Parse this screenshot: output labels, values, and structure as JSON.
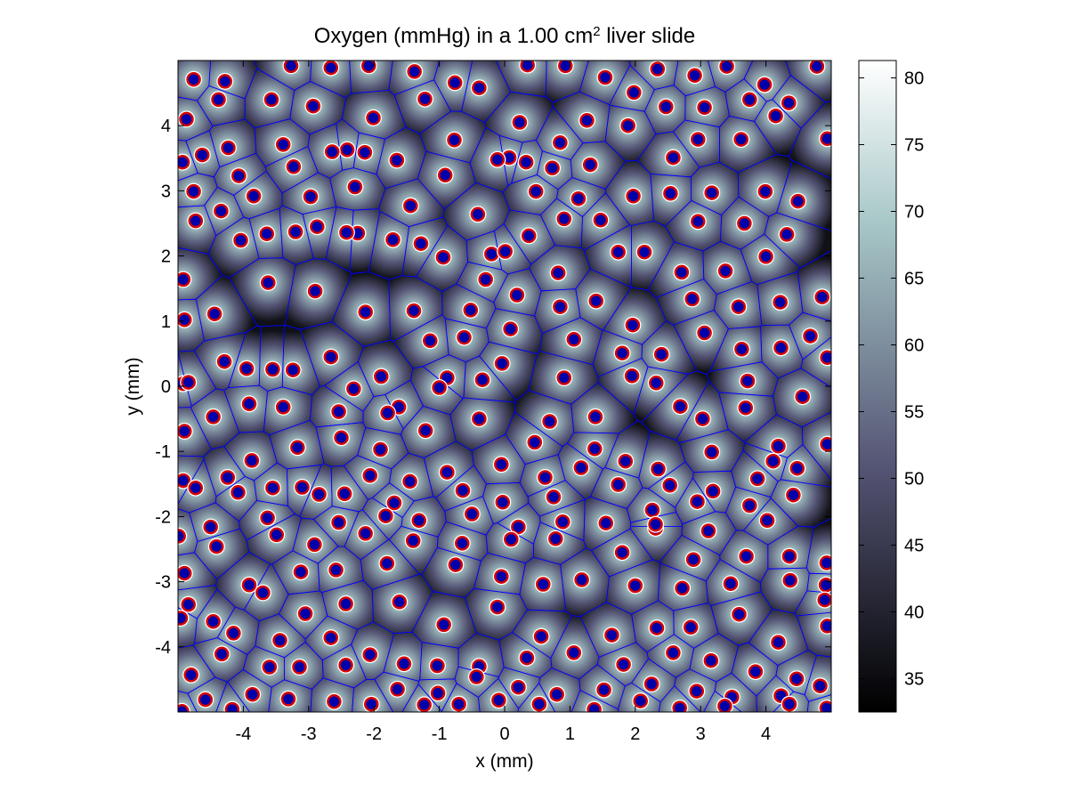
{
  "chart_data": {
    "type": "heatmap",
    "title": {
      "main": "Oxygen (mmHg) in a 1.00 cm",
      "superscript": "2",
      "suffix": " liver slide"
    },
    "xlabel": "x (mm)",
    "ylabel": "y (mm)",
    "xlim": [
      -5,
      5
    ],
    "ylim": [
      -5,
      5
    ],
    "xticks": [
      -4,
      -3,
      -2,
      -1,
      0,
      1,
      2,
      3,
      4
    ],
    "yticks": [
      -4,
      -3,
      -2,
      -1,
      0,
      1,
      2,
      3,
      4
    ],
    "grid": false,
    "colorbar": {
      "min": 32.5,
      "max": 81.3,
      "ticks": [
        35,
        40,
        45,
        50,
        55,
        60,
        65,
        70,
        75,
        80
      ],
      "colormap": "bone",
      "location": "right"
    },
    "colors": {
      "voronoi_edge": "#0000ff",
      "vessel_ring": "#ffffff",
      "vessel_outline": "#d40000",
      "vessel_core": "#0000aa",
      "field_low": "#000000",
      "field_high": "#ffffff"
    },
    "vessels_x": [
      -4.76,
      -4.28,
      -3.27,
      -2.66,
      -2.08,
      -1.38,
      -0.76,
      0.35,
      0.93,
      1.54,
      2.34,
      2.91,
      3.4,
      3.98,
      4.78,
      -4.87,
      -4.38,
      -3.57,
      -2.93,
      -2.01,
      -1.22,
      -0.39,
      0.23,
      1.26,
      1.98,
      2.47,
      3.06,
      3.75,
      4.35,
      -4.93,
      -4.23,
      -3.39,
      -2.41,
      -1.65,
      -0.77,
      0.07,
      0.85,
      1.89,
      2.96,
      3.62,
      4.15,
      -4.63,
      -4.07,
      -3.23,
      -2.64,
      -2.14,
      -0.91,
      -0.11,
      0.33,
      0.73,
      1.31,
      2.58,
      4.94,
      -4.76,
      -3.84,
      -2.97,
      -2.29,
      -1.44,
      -0.41,
      0.48,
      1.13,
      1.97,
      2.54,
      3.17,
      3.99,
      4.49,
      -4.73,
      -4.34,
      -3.64,
      -2.87,
      -2.25,
      -1.28,
      -0.2,
      0.37,
      0.91,
      1.47,
      2.14,
      2.96,
      3.67,
      4.32,
      -4.92,
      -4.04,
      -3.2,
      -2.42,
      -1.71,
      -0.94,
      -0.29,
      0.01,
      0.82,
      1.74,
      2.71,
      3.38,
      4.0,
      4.86,
      -4.9,
      -4.44,
      -3.62,
      -2.9,
      -2.13,
      -1.39,
      -0.52,
      0.19,
      0.85,
      1.4,
      1.96,
      2.87,
      3.58,
      4.22,
      4.68,
      -4.92,
      -4.29,
      -3.55,
      -2.66,
      -1.89,
      -1.14,
      -0.62,
      0.09,
      1.06,
      1.8,
      2.4,
      3.06,
      3.63,
      4.23,
      4.94,
      -4.84,
      -3.95,
      -3.24,
      -2.31,
      -1.62,
      -0.88,
      -0.04,
      0.91,
      1.95,
      2.69,
      3.72,
      4.56,
      -4.46,
      -3.91,
      -3.39,
      -2.54,
      -1.79,
      -1.0,
      -0.34,
      0.69,
      1.39,
      2.32,
      3.03,
      3.69,
      4.19,
      -4.9,
      -3.87,
      -3.17,
      -2.5,
      -1.9,
      -1.21,
      -0.39,
      0.46,
      1.38,
      2.35,
      3.17,
      4.11,
      4.94,
      -4.92,
      -4.24,
      -3.55,
      -2.84,
      -2.06,
      -1.45,
      -0.88,
      -0.05,
      0.62,
      1.17,
      1.85,
      2.53,
      3.19,
      3.87,
      4.48,
      -4.73,
      -4.08,
      -3.1,
      -2.45,
      -1.69,
      -0.64,
      -0.03,
      0.75,
      1.74,
      2.26,
      2.95,
      3.75,
      4.42,
      -4.99,
      -4.5,
      -3.63,
      -2.54,
      -1.82,
      -1.31,
      -0.5,
      0.21,
      0.89,
      1.55,
      2.31,
      3.12,
      4.02,
      4.93,
      -4.41,
      -3.49,
      -2.91,
      -2.13,
      -1.4,
      -0.65,
      0.1,
      0.78,
      1.8,
      2.31,
      2.89,
      3.7,
      4.36,
      4.92,
      -4.9,
      -3.91,
      -3.12,
      -2.58,
      -1.8,
      -0.75,
      -0.05,
      0.59,
      1.18,
      2.0,
      2.72,
      3.46,
      4.37,
      4.9,
      -4.96,
      -4.46,
      -3.7,
      -3.05,
      -2.43,
      -1.61,
      -0.93,
      -0.11,
      0.56,
      1.64,
      2.33,
      2.85,
      3.59,
      4.19,
      4.94,
      -4.84,
      -4.15,
      -3.44,
      -2.66,
      -2.06,
      -1.54,
      -1.03,
      -0.39,
      0.34,
      1.06,
      1.82,
      2.58,
      3.16,
      3.84,
      4.47,
      -4.8,
      -4.33,
      -3.6,
      -3.14,
      -2.43,
      -1.64,
      -1.02,
      -0.43,
      0.21,
      0.8,
      1.52,
      2.25,
      2.94,
      3.48,
      4.23,
      4.83,
      -4.58,
      -3.86,
      -3.31,
      -2.61,
      -2.04,
      -1.23,
      -0.7,
      -0.09,
      0.53,
      1.37,
      2.08,
      2.68,
      3.37,
      4.36,
      4.93,
      -4.94,
      -4.17,
      -3.42,
      -2.81,
      -2.09,
      -1.49,
      -0.86,
      -0.29,
      0.27,
      0.79,
      1.7,
      2.34,
      3.07,
      3.67,
      4.4,
      4.87,
      -4.91,
      -4.43,
      -3.66,
      -3.13,
      -2.53,
      -1.59,
      -1.01,
      -0.44,
      0.29,
      0.9,
      1.43,
      2.49,
      3.16,
      4.25
    ],
    "vessels_y": [
      4.71,
      4.68,
      4.92,
      4.89,
      4.92,
      4.83,
      4.66,
      4.93,
      4.92,
      4.74,
      4.87,
      4.77,
      4.91,
      4.63,
      4.91,
      4.1,
      4.4,
      4.4,
      4.3,
      4.12,
      4.41,
      4.58,
      4.05,
      4.08,
      4.51,
      4.29,
      4.28,
      4.4,
      4.35,
      3.44,
      3.66,
      3.71,
      3.63,
      3.47,
      3.78,
      3.51,
      3.74,
      4.0,
      3.79,
      3.79,
      4.15,
      3.55,
      3.23,
      3.37,
      3.6,
      3.59,
      3.24,
      3.48,
      3.44,
      3.35,
      3.4,
      3.51,
      3.8,
      2.99,
      2.92,
      2.91,
      3.06,
      2.77,
      2.64,
      2.99,
      2.88,
      2.92,
      2.96,
      2.97,
      2.99,
      2.84,
      2.54,
      2.69,
      2.34,
      2.45,
      2.35,
      2.19,
      2.03,
      2.31,
      2.57,
      2.55,
      2.06,
      2.53,
      2.5,
      2.33,
      1.64,
      2.24,
      2.37,
      2.36,
      2.25,
      1.98,
      1.64,
      2.07,
      1.74,
      2.06,
      1.75,
      1.77,
      1.99,
      1.37,
      1.02,
      1.11,
      1.59,
      1.46,
      1.14,
      1.16,
      1.17,
      1.4,
      1.22,
      1.31,
      0.94,
      1.34,
      1.22,
      1.29,
      0.77,
      0.04,
      0.38,
      0.26,
      0.45,
      0.15,
      0.7,
      0.75,
      0.88,
      0.72,
      0.51,
      0.49,
      0.82,
      0.57,
      0.59,
      0.44,
      0.06,
      0.27,
      0.25,
      -0.04,
      -0.32,
      0.13,
      0.35,
      0.13,
      0.16,
      -0.31,
      0.08,
      -0.16,
      -0.47,
      -0.27,
      -0.32,
      -0.39,
      -0.41,
      -0.02,
      0.1,
      -0.54,
      -0.47,
      0.05,
      -0.5,
      -0.33,
      -0.92,
      -0.69,
      -1.14,
      -0.94,
      -0.79,
      -0.97,
      -0.68,
      -0.5,
      -0.86,
      -0.96,
      -1.27,
      -1.01,
      -1.15,
      -0.89,
      -1.45,
      -1.4,
      -1.56,
      -1.66,
      -1.37,
      -1.46,
      -1.32,
      -1.2,
      -1.4,
      -1.25,
      -1.15,
      -1.52,
      -1.61,
      -1.42,
      -1.26,
      -1.56,
      -1.63,
      -1.55,
      -1.65,
      -1.79,
      -1.6,
      -1.78,
      -1.7,
      -1.51,
      -1.9,
      -1.77,
      -1.83,
      -1.67,
      -2.3,
      -2.16,
      -2.02,
      -2.09,
      -1.99,
      -2.06,
      -1.96,
      -2.16,
      -2.08,
      -2.1,
      -2.18,
      -2.22,
      -2.06,
      -2.71,
      -2.46,
      -2.28,
      -2.43,
      -2.26,
      -2.37,
      -2.41,
      -2.35,
      -2.34,
      -2.55,
      -2.12,
      -2.66,
      -2.61,
      -2.61,
      -3.05,
      -2.87,
      -3.05,
      -2.85,
      -2.82,
      -2.72,
      -2.74,
      -2.92,
      -3.04,
      -2.97,
      -3.06,
      -3.1,
      -3.03,
      -2.98,
      -3.28,
      -3.56,
      -3.61,
      -3.17,
      -3.49,
      -3.34,
      -3.31,
      -3.66,
      -3.39,
      -3.84,
      -3.82,
      -3.71,
      -3.7,
      -3.5,
      -3.93,
      -3.68,
      -3.35,
      -3.79,
      -3.9,
      -3.86,
      -4.12,
      -4.26,
      -4.29,
      -4.3,
      -4.17,
      -4.09,
      -4.27,
      -4.09,
      -4.21,
      -4.38,
      -4.49,
      -4.43,
      -4.11,
      -4.31,
      -4.31,
      -4.28,
      -4.65,
      -4.71,
      -4.46,
      -4.62,
      -4.73,
      -4.66,
      -4.57,
      -4.68,
      -4.77,
      -4.75,
      -4.6,
      -4.81,
      -4.73,
      -4.8,
      -4.84,
      -4.88,
      -4.89,
      -4.88,
      -4.82,
      -4.88,
      -4.96,
      -4.83,
      -4.94,
      -4.91,
      -4.88,
      -4.94,
      -4.99,
      -4.96
    ]
  }
}
